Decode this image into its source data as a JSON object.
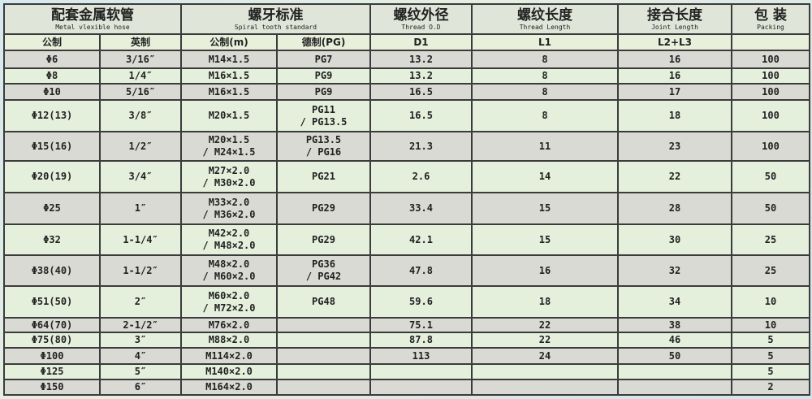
{
  "header": {
    "hose": {
      "cn": "配套金属软管",
      "en": "Metal vlexible hose"
    },
    "thread": {
      "cn": "螺牙标准",
      "en": "Spiral tooth standard"
    },
    "od": {
      "cn": "螺纹外径",
      "en": "Thread O.D"
    },
    "tl": {
      "cn": "螺纹长度",
      "en": "Thread Length"
    },
    "jl": {
      "cn": "接合长度",
      "en": "Joint Length"
    },
    "pk": {
      "cn": "包 装",
      "en": "Packing"
    }
  },
  "subheader": [
    "公制",
    "英制",
    "公制(m)",
    "德制(PG)",
    "D1",
    "L1",
    "L2+L3",
    ""
  ],
  "rows": [
    [
      "Φ6",
      "3/16″",
      "M14×1.5",
      "PG7",
      "13.2",
      "8",
      "16",
      "100"
    ],
    [
      "Φ8",
      "1/4″",
      "M16×1.5",
      "PG9",
      "13.2",
      "8",
      "16",
      "100"
    ],
    [
      "Φ10",
      "5/16″",
      "M16×1.5",
      "PG9",
      "16.5",
      "8",
      "17",
      "100"
    ],
    [
      "Φ12(13)",
      "3/8″",
      "M20×1.5",
      "PG11\n/ PG13.5",
      "16.5",
      "8",
      "18",
      "100"
    ],
    [
      "Φ15(16)",
      "1/2″",
      "M20×1.5\n/ M24×1.5",
      "PG13.5\n/ PG16",
      "21.3",
      "11",
      "23",
      "100"
    ],
    [
      "Φ20(19)",
      "3/4″",
      "M27×2.0\n/ M30×2.0",
      "PG21",
      "2.6",
      "14",
      "22",
      "50"
    ],
    [
      "Φ25",
      "1″",
      "M33×2.0\n/ M36×2.0",
      "PG29",
      "33.4",
      "15",
      "28",
      "50"
    ],
    [
      "Φ32",
      "1-1/4″",
      "M42×2.0\n/ M48×2.0",
      "PG29",
      "42.1",
      "15",
      "30",
      "25"
    ],
    [
      "Φ38(40)",
      "1-1/2″",
      "M48×2.0\n/ M60×2.0",
      "PG36\n/ PG42",
      "47.8",
      "16",
      "32",
      "25"
    ],
    [
      "Φ51(50)",
      "2″",
      "M60×2.0\n/ M72×2.0",
      "PG48",
      "59.6",
      "18",
      "34",
      "10"
    ],
    [
      "Φ64(70)",
      "2-1/2″",
      "M76×2.0",
      "",
      "75.1",
      "22",
      "38",
      "10"
    ],
    [
      "Φ75(80)",
      "3″",
      "M88×2.0",
      "",
      "87.8",
      "22",
      "46",
      "5"
    ],
    [
      "Φ100",
      "4″",
      "M114×2.0",
      "",
      "113",
      "24",
      "50",
      "5"
    ],
    [
      "Φ125",
      "5″",
      "M140×2.0",
      "",
      "",
      "",
      "",
      "5"
    ],
    [
      "Φ150",
      "6″",
      "M164×2.0",
      "",
      "",
      "",
      "",
      "2"
    ]
  ]
}
